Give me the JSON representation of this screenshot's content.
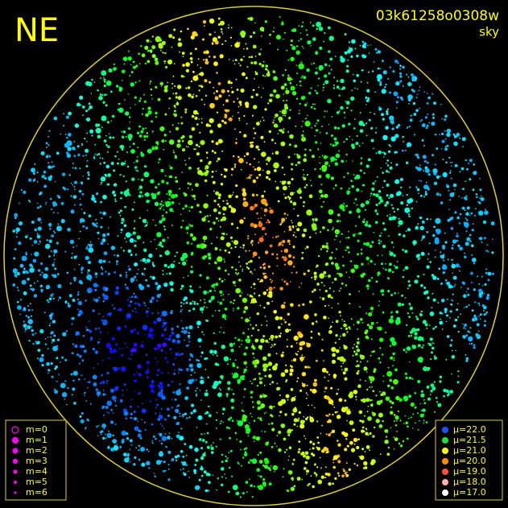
{
  "header": {
    "title": "NE",
    "frame_id": "03k61258o0308w",
    "subtitle": "sky"
  },
  "magnitude_legend": [
    "m=0",
    "m=1",
    "m=2",
    "m=3",
    "m=4",
    "m=5",
    "m=6"
  ],
  "brightness_legend": [
    {
      "label": "μ=22.0",
      "color": "#2050ff"
    },
    {
      "label": "μ=21.5",
      "color": "#20e040"
    },
    {
      "label": "μ=21.0",
      "color": "#ffff00"
    },
    {
      "label": "μ=20.0",
      "color": "#ff8c00"
    },
    {
      "label": "μ=19.0",
      "color": "#ff5040"
    },
    {
      "label": "μ=18.0",
      "color": "#ffb0b0"
    },
    {
      "label": "μ=17.0",
      "color": "#ffffff"
    }
  ]
}
